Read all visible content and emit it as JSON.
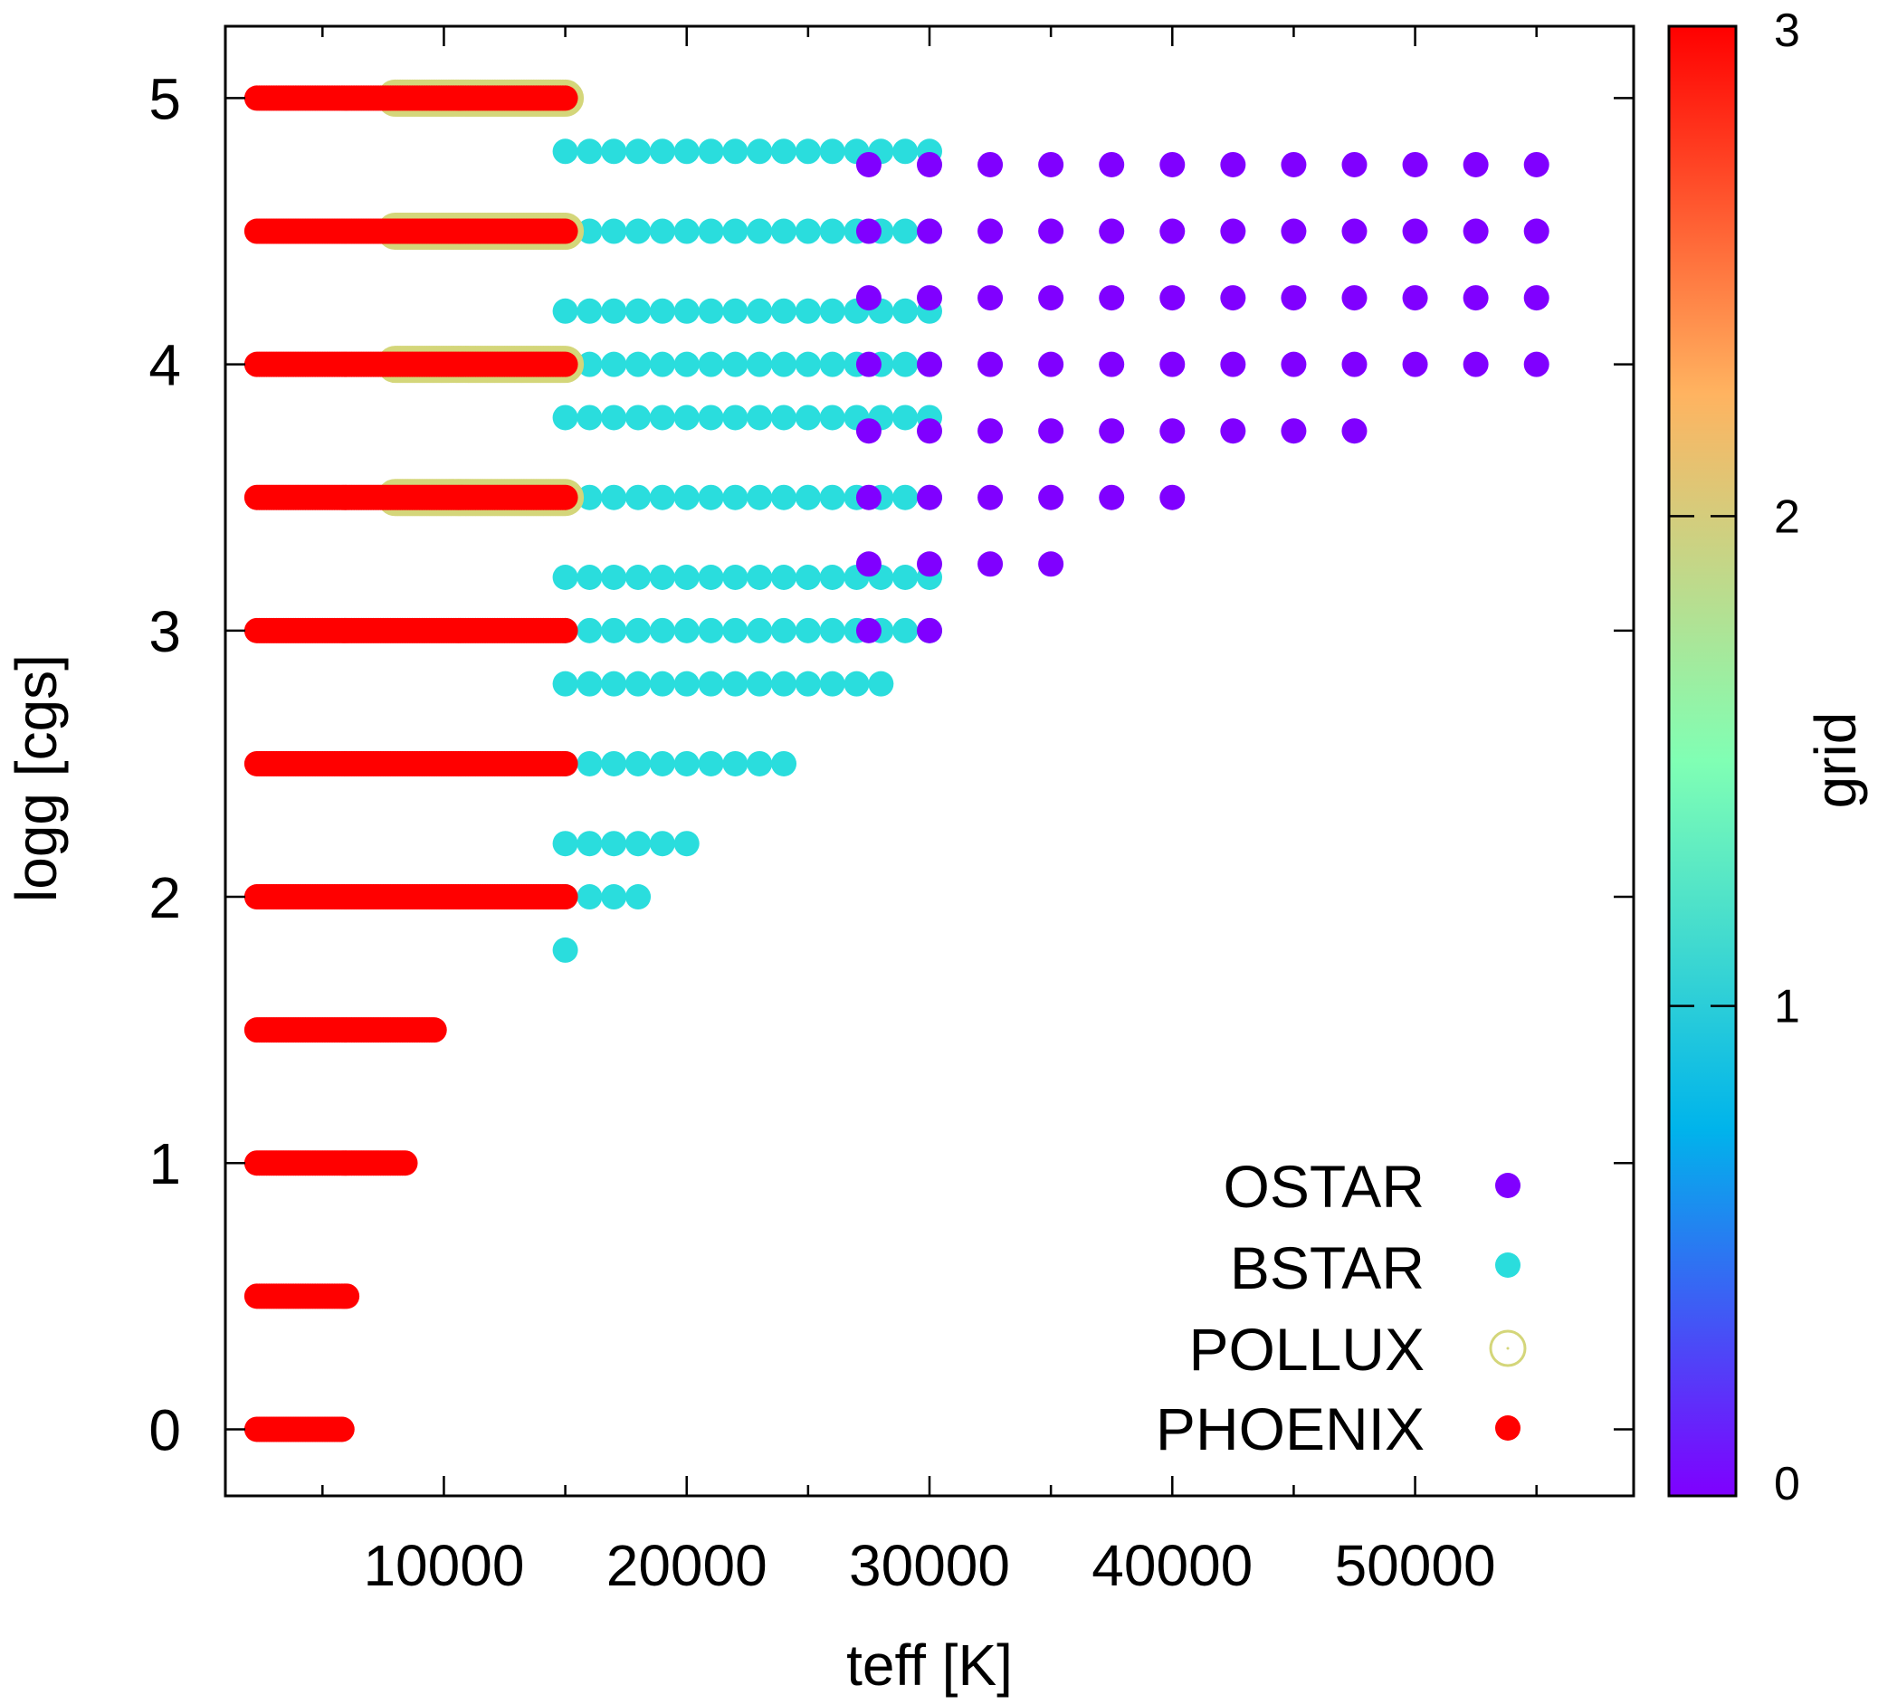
{
  "chart_data": {
    "type": "scatter",
    "xlabel": "teff [K]",
    "ylabel": "logg [cgs]",
    "colorbar_label": "grid",
    "xlim": [
      1000,
      59000
    ],
    "ylim": [
      -0.25,
      5.27
    ],
    "x_ticks": [
      10000,
      20000,
      30000,
      40000,
      50000
    ],
    "y_ticks": [
      0,
      1,
      2,
      3,
      4,
      5
    ],
    "colorbar_range": [
      0,
      3
    ],
    "colorbar_ticks": [
      0,
      1,
      2,
      3
    ],
    "colorbar_colors": [
      "#7f00ff",
      "#00b4eb",
      "#80ffb4",
      "#ffb360",
      "#ff0000"
    ],
    "grid": false,
    "legend_position": "bottom-right",
    "series": [
      {
        "name": "OSTAR",
        "color": "#8000ff",
        "marker": "filled-circle",
        "rows": [
          {
            "logg": 4.75,
            "teff": [
              27500,
              30000,
              32500,
              35000,
              37500,
              40000,
              42500,
              45000,
              47500,
              50000,
              52500,
              55000
            ]
          },
          {
            "logg": 4.5,
            "teff": [
              27500,
              30000,
              32500,
              35000,
              37500,
              40000,
              42500,
              45000,
              47500,
              50000,
              52500,
              55000
            ]
          },
          {
            "logg": 4.25,
            "teff": [
              27500,
              30000,
              32500,
              35000,
              37500,
              40000,
              42500,
              45000,
              47500,
              50000,
              52500,
              55000
            ]
          },
          {
            "logg": 4.0,
            "teff": [
              27500,
              30000,
              32500,
              35000,
              37500,
              40000,
              42500,
              45000,
              47500,
              50000,
              52500,
              55000
            ]
          },
          {
            "logg": 3.75,
            "teff": [
              27500,
              30000,
              32500,
              35000,
              37500,
              40000,
              42500,
              45000,
              47500
            ]
          },
          {
            "logg": 3.5,
            "teff": [
              27500,
              30000,
              32500,
              35000,
              37500,
              40000
            ]
          },
          {
            "logg": 3.25,
            "teff": [
              27500,
              30000,
              32500,
              35000
            ]
          },
          {
            "logg": 3.0,
            "teff": [
              27500,
              30000
            ]
          }
        ]
      },
      {
        "name": "BSTAR",
        "color": "#2adddd",
        "marker": "filled-circle",
        "rows": [
          {
            "logg": 4.8,
            "teff": [
              15000,
              16000,
              17000,
              18000,
              19000,
              20000,
              21000,
              22000,
              23000,
              24000,
              25000,
              26000,
              27000,
              28000,
              29000,
              30000
            ]
          },
          {
            "logg": 4.5,
            "teff": [
              15000,
              16000,
              17000,
              18000,
              19000,
              20000,
              21000,
              22000,
              23000,
              24000,
              25000,
              26000,
              27000,
              28000,
              29000,
              30000
            ]
          },
          {
            "logg": 4.2,
            "teff": [
              15000,
              16000,
              17000,
              18000,
              19000,
              20000,
              21000,
              22000,
              23000,
              24000,
              25000,
              26000,
              27000,
              28000,
              29000,
              30000
            ]
          },
          {
            "logg": 4.0,
            "teff": [
              15000,
              16000,
              17000,
              18000,
              19000,
              20000,
              21000,
              22000,
              23000,
              24000,
              25000,
              26000,
              27000,
              28000,
              29000,
              30000
            ]
          },
          {
            "logg": 3.8,
            "teff": [
              15000,
              16000,
              17000,
              18000,
              19000,
              20000,
              21000,
              22000,
              23000,
              24000,
              25000,
              26000,
              27000,
              28000,
              29000,
              30000
            ]
          },
          {
            "logg": 3.5,
            "teff": [
              15000,
              16000,
              17000,
              18000,
              19000,
              20000,
              21000,
              22000,
              23000,
              24000,
              25000,
              26000,
              27000,
              28000,
              29000,
              30000
            ]
          },
          {
            "logg": 3.2,
            "teff": [
              15000,
              16000,
              17000,
              18000,
              19000,
              20000,
              21000,
              22000,
              23000,
              24000,
              25000,
              26000,
              27000,
              28000,
              29000,
              30000
            ]
          },
          {
            "logg": 3.0,
            "teff": [
              15000,
              16000,
              17000,
              18000,
              19000,
              20000,
              21000,
              22000,
              23000,
              24000,
              25000,
              26000,
              27000,
              28000,
              29000,
              30000
            ]
          },
          {
            "logg": 2.8,
            "teff": [
              15000,
              16000,
              17000,
              18000,
              19000,
              20000,
              21000,
              22000,
              23000,
              24000,
              25000,
              26000,
              27000,
              28000
            ]
          },
          {
            "logg": 2.5,
            "teff": [
              15000,
              16000,
              17000,
              18000,
              19000,
              20000,
              21000,
              22000,
              23000,
              24000
            ]
          },
          {
            "logg": 2.2,
            "teff": [
              15000,
              16000,
              17000,
              18000,
              19000,
              20000
            ]
          },
          {
            "logg": 2.0,
            "teff": [
              15000,
              16000,
              17000,
              18000
            ]
          },
          {
            "logg": 1.8,
            "teff": [
              15000
            ]
          }
        ]
      },
      {
        "name": "POLLUX",
        "color": "#d4d67a",
        "marker": "open-circle",
        "rows": [
          {
            "logg": 5.0,
            "teff_range": [
              8000,
              15000
            ],
            "step": 100
          },
          {
            "logg": 4.5,
            "teff_range": [
              8000,
              15000
            ],
            "step": 100
          },
          {
            "logg": 4.0,
            "teff_range": [
              8000,
              15000
            ],
            "step": 100
          },
          {
            "logg": 3.5,
            "teff_range": [
              8000,
              15000
            ],
            "step": 100
          }
        ]
      },
      {
        "name": "PHOENIX",
        "color": "#ff0000",
        "marker": "filled-circle",
        "rows": [
          {
            "logg": 5.0,
            "teff_range": [
              2300,
              15000
            ]
          },
          {
            "logg": 4.5,
            "teff_range": [
              2300,
              15000
            ]
          },
          {
            "logg": 4.0,
            "teff_range": [
              2300,
              15000
            ]
          },
          {
            "logg": 3.5,
            "teff_range": [
              2300,
              15000
            ]
          },
          {
            "logg": 3.0,
            "teff_range": [
              2300,
              15000
            ]
          },
          {
            "logg": 2.5,
            "teff_range": [
              2300,
              15000
            ]
          },
          {
            "logg": 2.0,
            "teff_range": [
              2300,
              15000
            ]
          },
          {
            "logg": 1.5,
            "teff_range": [
              2300,
              9600
            ]
          },
          {
            "logg": 1.0,
            "teff_range": [
              2300,
              8400
            ]
          },
          {
            "logg": 0.5,
            "teff_range": [
              2300,
              6000
            ]
          },
          {
            "logg": 0.0,
            "teff_range": [
              2300,
              5800
            ]
          }
        ]
      }
    ]
  }
}
